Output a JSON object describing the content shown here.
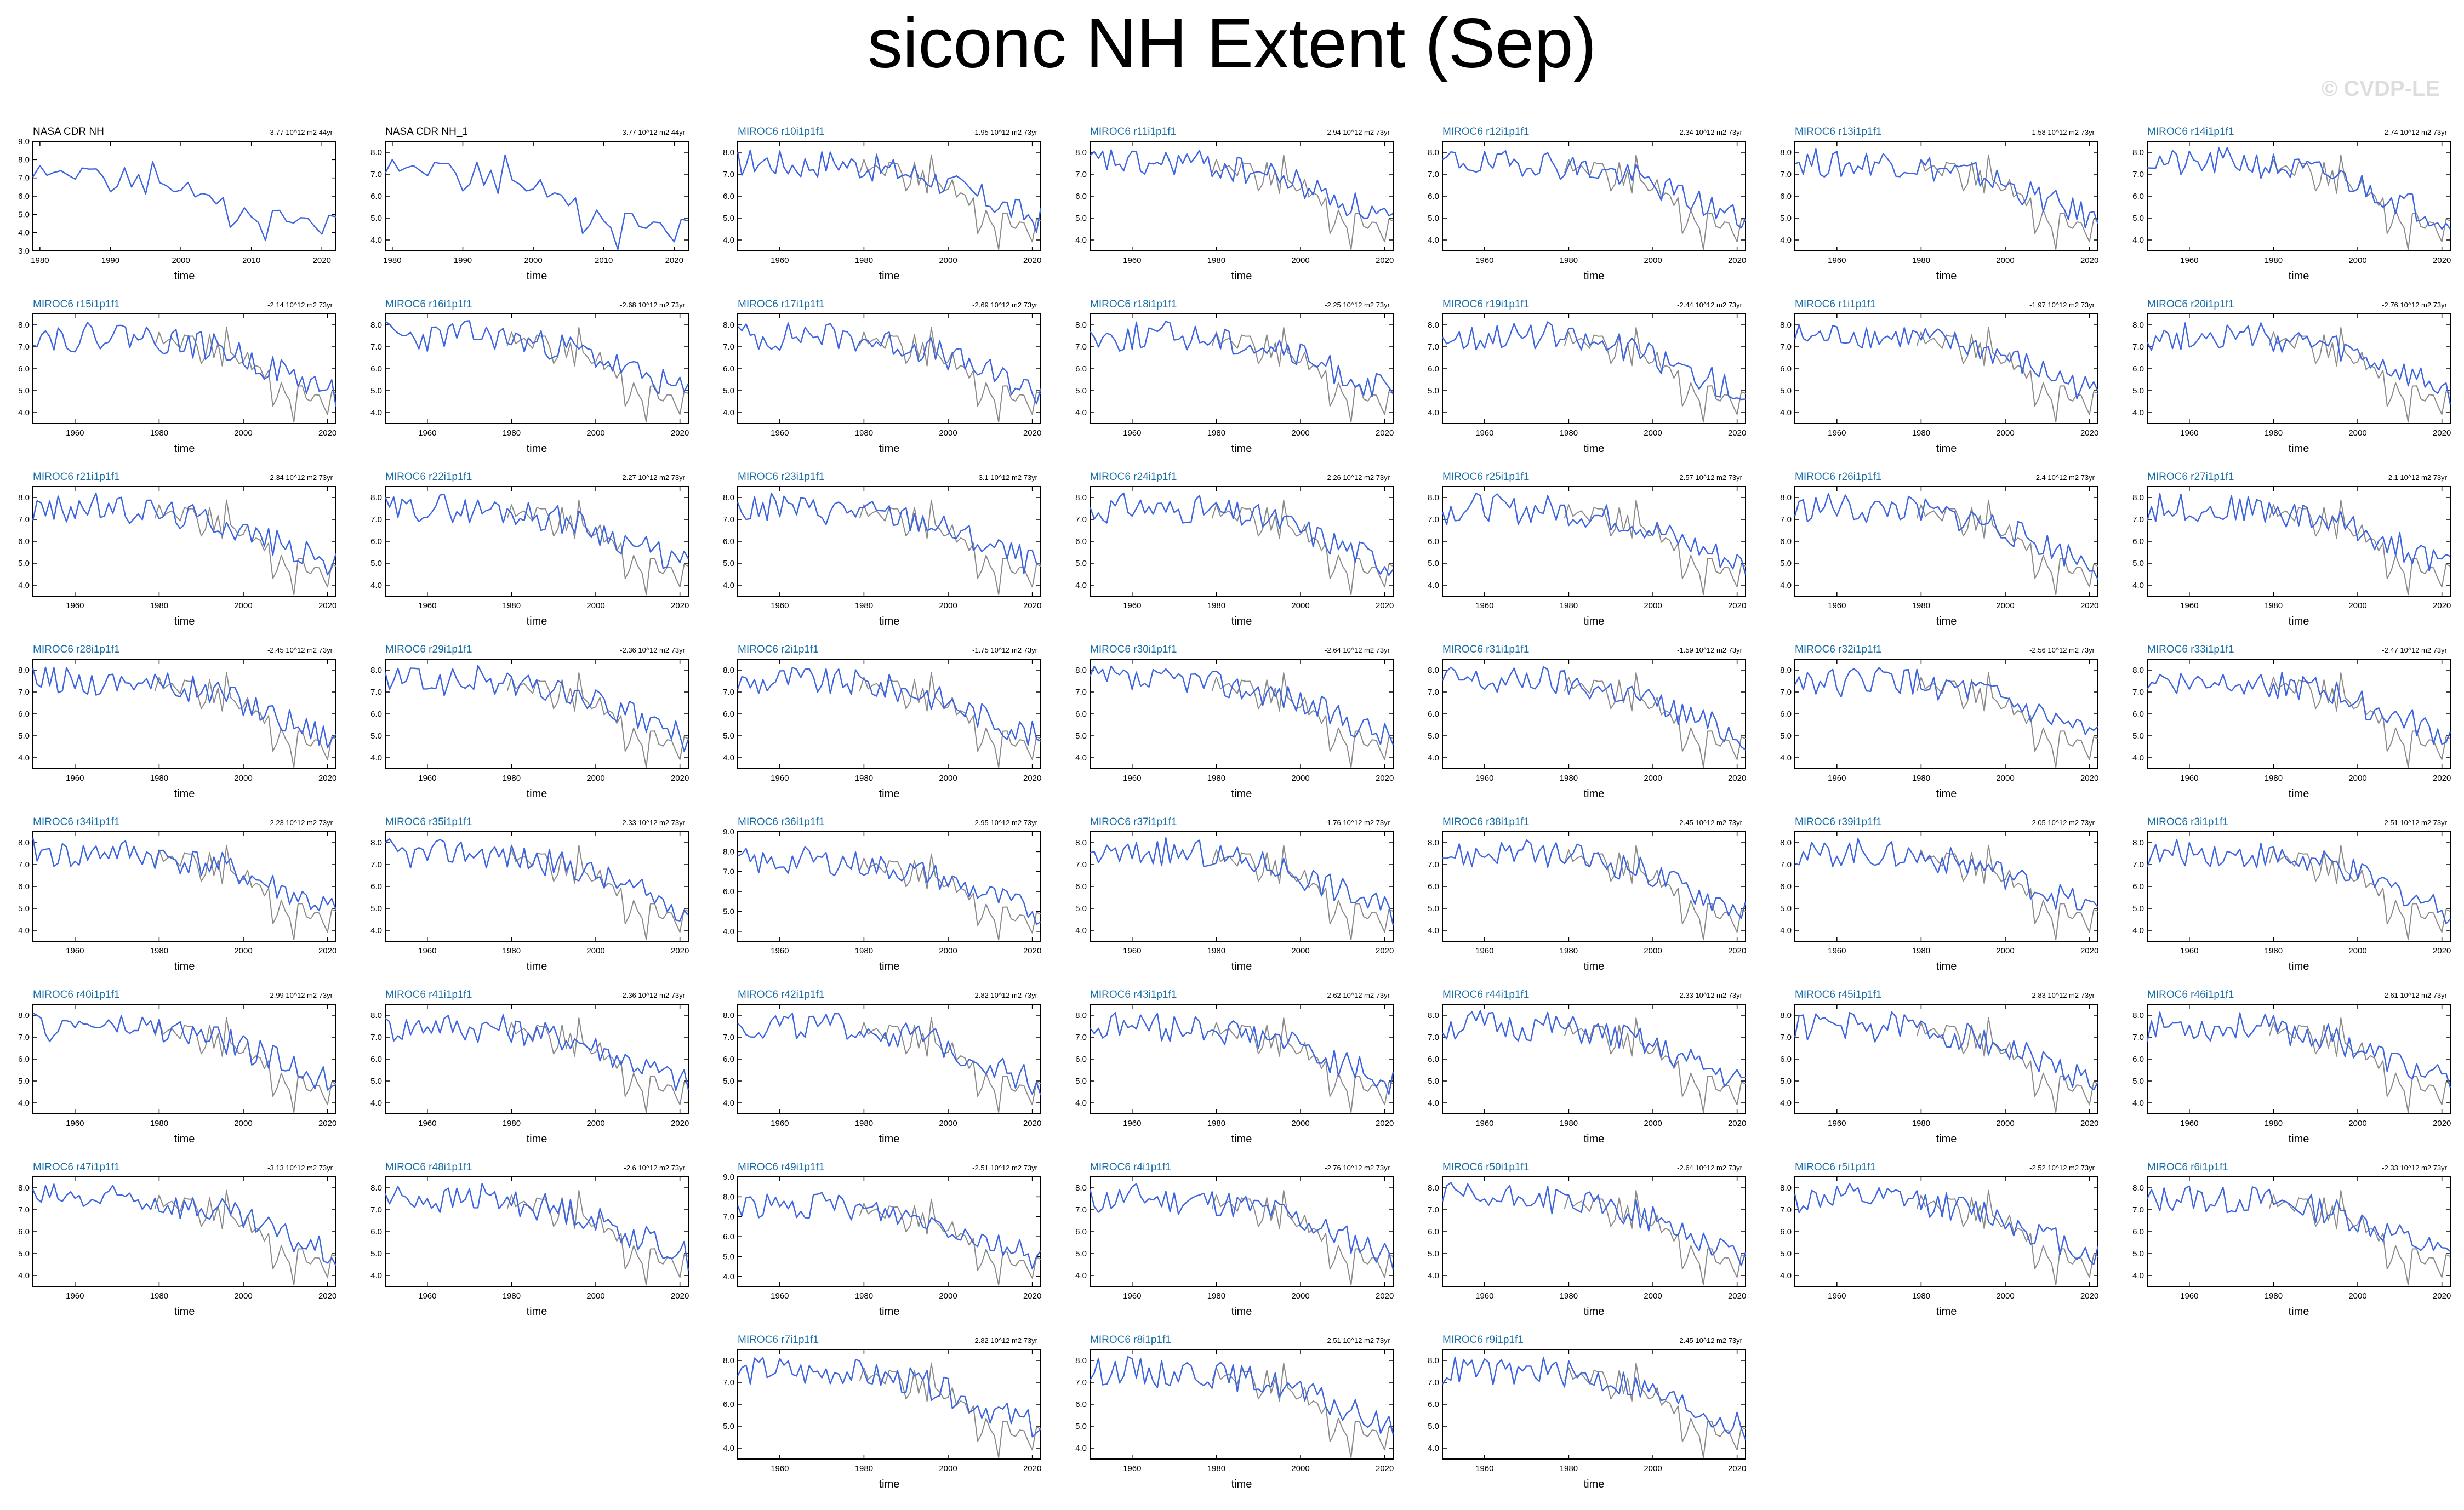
{
  "figure": {
    "title": "siconc NH Extent (Sep)",
    "watermark": "© CVDP-LE",
    "colors": {
      "model": "#3d64e0",
      "obs": "#8a8a8a",
      "obs_panel": "#3d64e0",
      "model_label": "#1a6ea8",
      "obs_label": "#000000"
    }
  },
  "chart_data": [
    {
      "type": "line",
      "label": "NASA CDR NH",
      "trend": "-3.77 10^12 m2 44yr",
      "x_range": [
        1979,
        2022
      ],
      "ylim": [
        3.0,
        9.0
      ],
      "yticks": [
        "3.0",
        "4.0",
        "5.0",
        "6.0",
        "7.0",
        "8.0",
        "9.0"
      ],
      "xticks": [
        1980,
        1990,
        2000,
        2010,
        2020
      ],
      "xlabel": "time",
      "is_obs": true
    },
    {
      "type": "line",
      "label": "NASA CDR NH_1",
      "trend": "-3.77 10^12 m2 44yr",
      "x_range": [
        1979,
        2022
      ],
      "ylim": [
        3.5,
        8.5
      ],
      "yticks": [
        "4.0",
        "5.0",
        "6.0",
        "7.0",
        "8.0"
      ],
      "xticks": [
        1980,
        1990,
        2000,
        2010,
        2020
      ],
      "xlabel": "time",
      "is_obs": true
    },
    {
      "type": "line",
      "label": "MIROC6 r10i1p1f1",
      "trend": "-1.95 10^12 m2 73yr",
      "seed": 10
    },
    {
      "type": "line",
      "label": "MIROC6 r11i1p1f1",
      "trend": "-2.94 10^12 m2 73yr",
      "seed": 11
    },
    {
      "type": "line",
      "label": "MIROC6 r12i1p1f1",
      "trend": "-2.34 10^12 m2 73yr",
      "seed": 12
    },
    {
      "type": "line",
      "label": "MIROC6 r13i1p1f1",
      "trend": "-1.58 10^12 m2 73yr",
      "seed": 13
    },
    {
      "type": "line",
      "label": "MIROC6 r14i1p1f1",
      "trend": "-2.74 10^12 m2 73yr",
      "seed": 14
    },
    {
      "type": "line",
      "label": "MIROC6 r15i1p1f1",
      "trend": "-2.14 10^12 m2 73yr",
      "seed": 15
    },
    {
      "type": "line",
      "label": "MIROC6 r16i1p1f1",
      "trend": "-2.68 10^12 m2 73yr",
      "seed": 16
    },
    {
      "type": "line",
      "label": "MIROC6 r17i1p1f1",
      "trend": "-2.69 10^12 m2 73yr",
      "seed": 17
    },
    {
      "type": "line",
      "label": "MIROC6 r18i1p1f1",
      "trend": "-2.25 10^12 m2 73yr",
      "seed": 18
    },
    {
      "type": "line",
      "label": "MIROC6 r19i1p1f1",
      "trend": "-2.44 10^12 m2 73yr",
      "seed": 19
    },
    {
      "type": "line",
      "label": "MIROC6 r1i1p1f1",
      "trend": "-1.97 10^12 m2 73yr",
      "seed": 1
    },
    {
      "type": "line",
      "label": "MIROC6 r20i1p1f1",
      "trend": "-2.76 10^12 m2 73yr",
      "seed": 20
    },
    {
      "type": "line",
      "label": "MIROC6 r21i1p1f1",
      "trend": "-2.34 10^12 m2 73yr",
      "seed": 21
    },
    {
      "type": "line",
      "label": "MIROC6 r22i1p1f1",
      "trend": "-2.27 10^12 m2 73yr",
      "seed": 22
    },
    {
      "type": "line",
      "label": "MIROC6 r23i1p1f1",
      "trend": "-3.1 10^12 m2 73yr",
      "seed": 23
    },
    {
      "type": "line",
      "label": "MIROC6 r24i1p1f1",
      "trend": "-2.26 10^12 m2 73yr",
      "seed": 24
    },
    {
      "type": "line",
      "label": "MIROC6 r25i1p1f1",
      "trend": "-2.57 10^12 m2 73yr",
      "seed": 25
    },
    {
      "type": "line",
      "label": "MIROC6 r26i1p1f1",
      "trend": "-2.4 10^12 m2 73yr",
      "seed": 26
    },
    {
      "type": "line",
      "label": "MIROC6 r27i1p1f1",
      "trend": "-2.1 10^12 m2 73yr",
      "seed": 27
    },
    {
      "type": "line",
      "label": "MIROC6 r28i1p1f1",
      "trend": "-2.45 10^12 m2 73yr",
      "seed": 28
    },
    {
      "type": "line",
      "label": "MIROC6 r29i1p1f1",
      "trend": "-2.36 10^12 m2 73yr",
      "seed": 29
    },
    {
      "type": "line",
      "label": "MIROC6 r2i1p1f1",
      "trend": "-1.75 10^12 m2 73yr",
      "seed": 2
    },
    {
      "type": "line",
      "label": "MIROC6 r30i1p1f1",
      "trend": "-2.64 10^12 m2 73yr",
      "seed": 30
    },
    {
      "type": "line",
      "label": "MIROC6 r31i1p1f1",
      "trend": "-1.59 10^12 m2 73yr",
      "seed": 31
    },
    {
      "type": "line",
      "label": "MIROC6 r32i1p1f1",
      "trend": "-2.56 10^12 m2 73yr",
      "seed": 32
    },
    {
      "type": "line",
      "label": "MIROC6 r33i1p1f1",
      "trend": "-2.47 10^12 m2 73yr",
      "seed": 33
    },
    {
      "type": "line",
      "label": "MIROC6 r34i1p1f1",
      "trend": "-2.23 10^12 m2 73yr",
      "seed": 34
    },
    {
      "type": "line",
      "label": "MIROC6 r35i1p1f1",
      "trend": "-2.33 10^12 m2 73yr",
      "seed": 35
    },
    {
      "type": "line",
      "label": "MIROC6 r36i1p1f1",
      "trend": "-2.95 10^12 m2 73yr",
      "seed": 36,
      "ylim": [
        3.5,
        9.0
      ],
      "yticks": [
        "4.0",
        "5.0",
        "6.0",
        "7.0",
        "8.0",
        "9.0"
      ]
    },
    {
      "type": "line",
      "label": "MIROC6 r37i1p1f1",
      "trend": "-1.76 10^12 m2 73yr",
      "seed": 37
    },
    {
      "type": "line",
      "label": "MIROC6 r38i1p1f1",
      "trend": "-2.45 10^12 m2 73yr",
      "seed": 38
    },
    {
      "type": "line",
      "label": "MIROC6 r39i1p1f1",
      "trend": "-2.05 10^12 m2 73yr",
      "seed": 39
    },
    {
      "type": "line",
      "label": "MIROC6 r3i1p1f1",
      "trend": "-2.51 10^12 m2 73yr",
      "seed": 3
    },
    {
      "type": "line",
      "label": "MIROC6 r40i1p1f1",
      "trend": "-2.99 10^12 m2 73yr",
      "seed": 40
    },
    {
      "type": "line",
      "label": "MIROC6 r41i1p1f1",
      "trend": "-2.36 10^12 m2 73yr",
      "seed": 41
    },
    {
      "type": "line",
      "label": "MIROC6 r42i1p1f1",
      "trend": "-2.82 10^12 m2 73yr",
      "seed": 42
    },
    {
      "type": "line",
      "label": "MIROC6 r43i1p1f1",
      "trend": "-2.62 10^12 m2 73yr",
      "seed": 43
    },
    {
      "type": "line",
      "label": "MIROC6 r44i1p1f1",
      "trend": "-2.33 10^12 m2 73yr",
      "seed": 44
    },
    {
      "type": "line",
      "label": "MIROC6 r45i1p1f1",
      "trend": "-2.83 10^12 m2 73yr",
      "seed": 45
    },
    {
      "type": "line",
      "label": "MIROC6 r46i1p1f1",
      "trend": "-2.61 10^12 m2 73yr",
      "seed": 46
    },
    {
      "type": "line",
      "label": "MIROC6 r47i1p1f1",
      "trend": "-3.13 10^12 m2 73yr",
      "seed": 47
    },
    {
      "type": "line",
      "label": "MIROC6 r48i1p1f1",
      "trend": "-2.6 10^12 m2 73yr",
      "seed": 48
    },
    {
      "type": "line",
      "label": "MIROC6 r49i1p1f1",
      "trend": "-2.51 10^12 m2 73yr",
      "seed": 49,
      "ylim": [
        3.5,
        9.0
      ],
      "yticks": [
        "4.0",
        "5.0",
        "6.0",
        "7.0",
        "8.0",
        "9.0"
      ]
    },
    {
      "type": "line",
      "label": "MIROC6 r4i1p1f1",
      "trend": "-2.76 10^12 m2 73yr",
      "seed": 4
    },
    {
      "type": "line",
      "label": "MIROC6 r50i1p1f1",
      "trend": "-2.64 10^12 m2 73yr",
      "seed": 50
    },
    {
      "type": "line",
      "label": "MIROC6 r5i1p1f1",
      "trend": "-2.52 10^12 m2 73yr",
      "seed": 5
    },
    {
      "type": "line",
      "label": "MIROC6 r6i1p1f1",
      "trend": "-2.33 10^12 m2 73yr",
      "seed": 6
    },
    {
      "type": "line",
      "label": "MIROC6 r7i1p1f1",
      "trend": "-2.82 10^12 m2 73yr",
      "seed": 7
    },
    {
      "type": "line",
      "label": "MIROC6 r8i1p1f1",
      "trend": "-2.51 10^12 m2 73yr",
      "seed": 8
    },
    {
      "type": "line",
      "label": "MIROC6 r9i1p1f1",
      "trend": "-2.45 10^12 m2 73yr",
      "seed": 9
    }
  ],
  "model_defaults": {
    "x_range": [
      1950,
      2022
    ],
    "ylim": [
      3.5,
      8.5
    ],
    "yticks": [
      "4.0",
      "5.0",
      "6.0",
      "7.0",
      "8.0"
    ],
    "xticks": [
      1960,
      1980,
      2000,
      2020
    ],
    "xlabel": "time"
  },
  "obs_series": {
    "years": [
      1979,
      1980,
      1981,
      1982,
      1983,
      1984,
      1985,
      1986,
      1987,
      1988,
      1989,
      1990,
      1991,
      1992,
      1993,
      1994,
      1995,
      1996,
      1997,
      1998,
      1999,
      2000,
      2001,
      2002,
      2003,
      2004,
      2005,
      2006,
      2007,
      2008,
      2009,
      2010,
      2011,
      2012,
      2013,
      2014,
      2015,
      2016,
      2017,
      2018,
      2019,
      2020,
      2021,
      2022
    ],
    "values": [
      7.05,
      7.67,
      7.14,
      7.3,
      7.39,
      7.15,
      6.93,
      7.54,
      7.48,
      7.49,
      7.04,
      6.24,
      6.55,
      7.55,
      6.5,
      7.18,
      6.13,
      7.88,
      6.74,
      6.56,
      6.24,
      6.32,
      6.75,
      5.96,
      6.15,
      6.05,
      5.57,
      5.92,
      4.3,
      4.68,
      5.36,
      4.87,
      4.56,
      3.57,
      5.21,
      5.22,
      4.62,
      4.53,
      4.82,
      4.79,
      4.32,
      3.92,
      4.95,
      4.87
    ]
  }
}
